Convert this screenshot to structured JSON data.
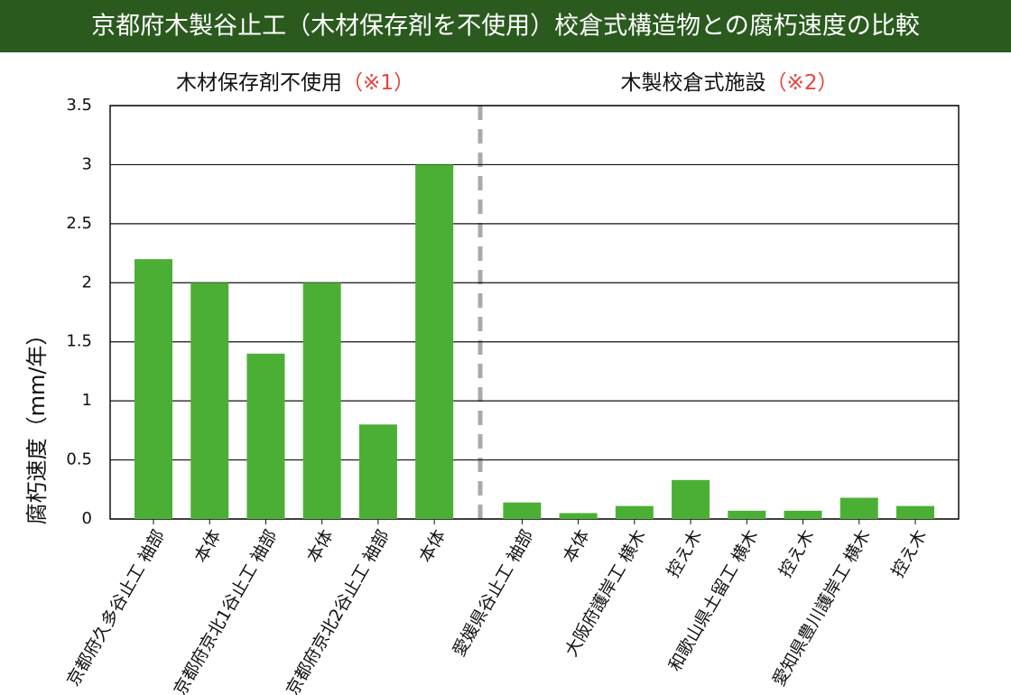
{
  "chart_data": {
    "type": "bar",
    "title": "京都府木製谷止工（木材保存剤を不使用）校倉式構造物との腐朽速度の比較",
    "groups": [
      {
        "label": "木材保存剤不使用",
        "note": "（※1）"
      },
      {
        "label": "木製校倉式施設",
        "note": "（※2）"
      }
    ],
    "ylabel": "腐朽速度（mm/年）",
    "categories": [
      "京都府久多谷止工 袖部",
      "本体",
      "京都府京北1谷止工 袖部",
      "本体",
      "京都府京北2谷止工 袖部",
      "本体",
      "愛媛県谷止工 袖部",
      "本体",
      "大阪府護岸工 横木",
      "控え木",
      "和歌山県土留工 横木",
      "控え木",
      "愛知県豊川護岸工 横木",
      "控え木"
    ],
    "values": [
      2.2,
      2.0,
      1.4,
      2.0,
      0.8,
      3.0,
      0.14,
      0.05,
      0.11,
      0.33,
      0.07,
      0.07,
      0.18,
      0.11
    ],
    "color": "#4caf35",
    "ylim": [
      0,
      3.5
    ],
    "yticks": [
      0,
      0.5,
      1,
      1.5,
      2,
      2.5,
      3,
      3.5
    ],
    "grid": true
  }
}
